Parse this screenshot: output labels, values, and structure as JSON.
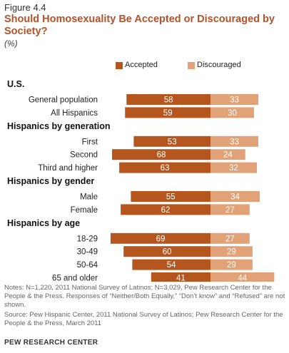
{
  "figure_label": "Figure 4.4",
  "title": "Should Homosexuality Be Accepted or Discouraged by Society?",
  "subtitle": "(%)",
  "colors": {
    "accepted": "#b5561f",
    "discouraged": "#e1a277",
    "group": "#111111",
    "text": "#222222"
  },
  "chart_data": {
    "type": "bar",
    "orientation": "horizontal-diverging",
    "legend": {
      "placement": "top-right",
      "entries": [
        "Accepted",
        "Discouraged"
      ]
    },
    "series": [
      {
        "name": "Accepted",
        "values": [
          58,
          59,
          53,
          68,
          63,
          55,
          62,
          69,
          60,
          54,
          41
        ]
      },
      {
        "name": "Discouraged",
        "values": [
          33,
          30,
          33,
          24,
          32,
          34,
          27,
          27,
          29,
          29,
          44
        ]
      }
    ],
    "groups": [
      {
        "label": "U.S.",
        "rows": [
          {
            "label": "General population",
            "accepted": 58,
            "discouraged": 33
          },
          {
            "label": "All Hispanics",
            "accepted": 59,
            "discouraged": 30
          }
        ]
      },
      {
        "label": "Hispanics by generation",
        "rows": [
          {
            "label": "First",
            "accepted": 53,
            "discouraged": 33
          },
          {
            "label": "Second",
            "accepted": 68,
            "discouraged": 24
          },
          {
            "label": "Third and higher",
            "accepted": 63,
            "discouraged": 32
          }
        ]
      },
      {
        "label": "Hispanics by gender",
        "rows": [
          {
            "label": "Male",
            "accepted": 55,
            "discouraged": 34
          },
          {
            "label": "Female",
            "accepted": 62,
            "discouraged": 27
          }
        ]
      },
      {
        "label": "Hispanics by age",
        "rows": [
          {
            "label": "18-29",
            "accepted": 69,
            "discouraged": 27
          },
          {
            "label": "30-49",
            "accepted": 60,
            "discouraged": 29
          },
          {
            "label": "50-64",
            "accepted": 54,
            "discouraged": 29
          },
          {
            "label": "65 and older",
            "accepted": 41,
            "discouraged": 44
          }
        ]
      }
    ]
  },
  "notes": "Notes: N=1,220, 2011 National Survey of Latinos; N=3,029, Pew Research Center for the People & the Press. Responses of “Neither/Both Equally,” “Don’t know” and “Refused” are not shown.",
  "source": "Source: Pew Hispanic Center, 2011 National Survey of Latinos; Pew Research Center for the People & the Press, March 2011",
  "credit": "PEW RESEARCH CENTER"
}
